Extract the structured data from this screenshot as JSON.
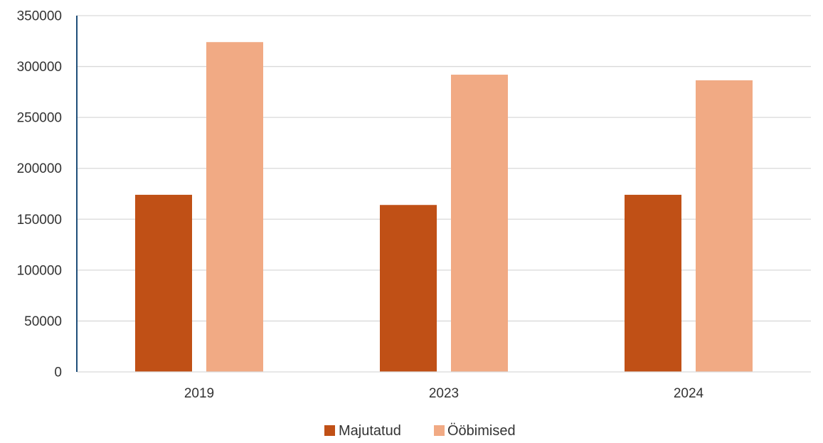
{
  "chart_data": {
    "type": "bar",
    "categories": [
      "2019",
      "2023",
      "2024"
    ],
    "series": [
      {
        "name": "Majutatud",
        "color": "#c05016",
        "values": [
          174000,
          164000,
          174000
        ]
      },
      {
        "name": "Ööbimised",
        "color": "#f1aa84",
        "values": [
          324000,
          292000,
          286500
        ]
      }
    ],
    "title": "",
    "xlabel": "",
    "ylabel": "",
    "ylim": [
      0,
      350000
    ],
    "yticks": [
      "0",
      "50000",
      "100000",
      "150000",
      "200000",
      "250000",
      "300000",
      "350000"
    ],
    "grid": true,
    "legend_position": "bottom-center",
    "gridline_color": "#d9d9d9",
    "axis_color": "#1f4e79"
  }
}
